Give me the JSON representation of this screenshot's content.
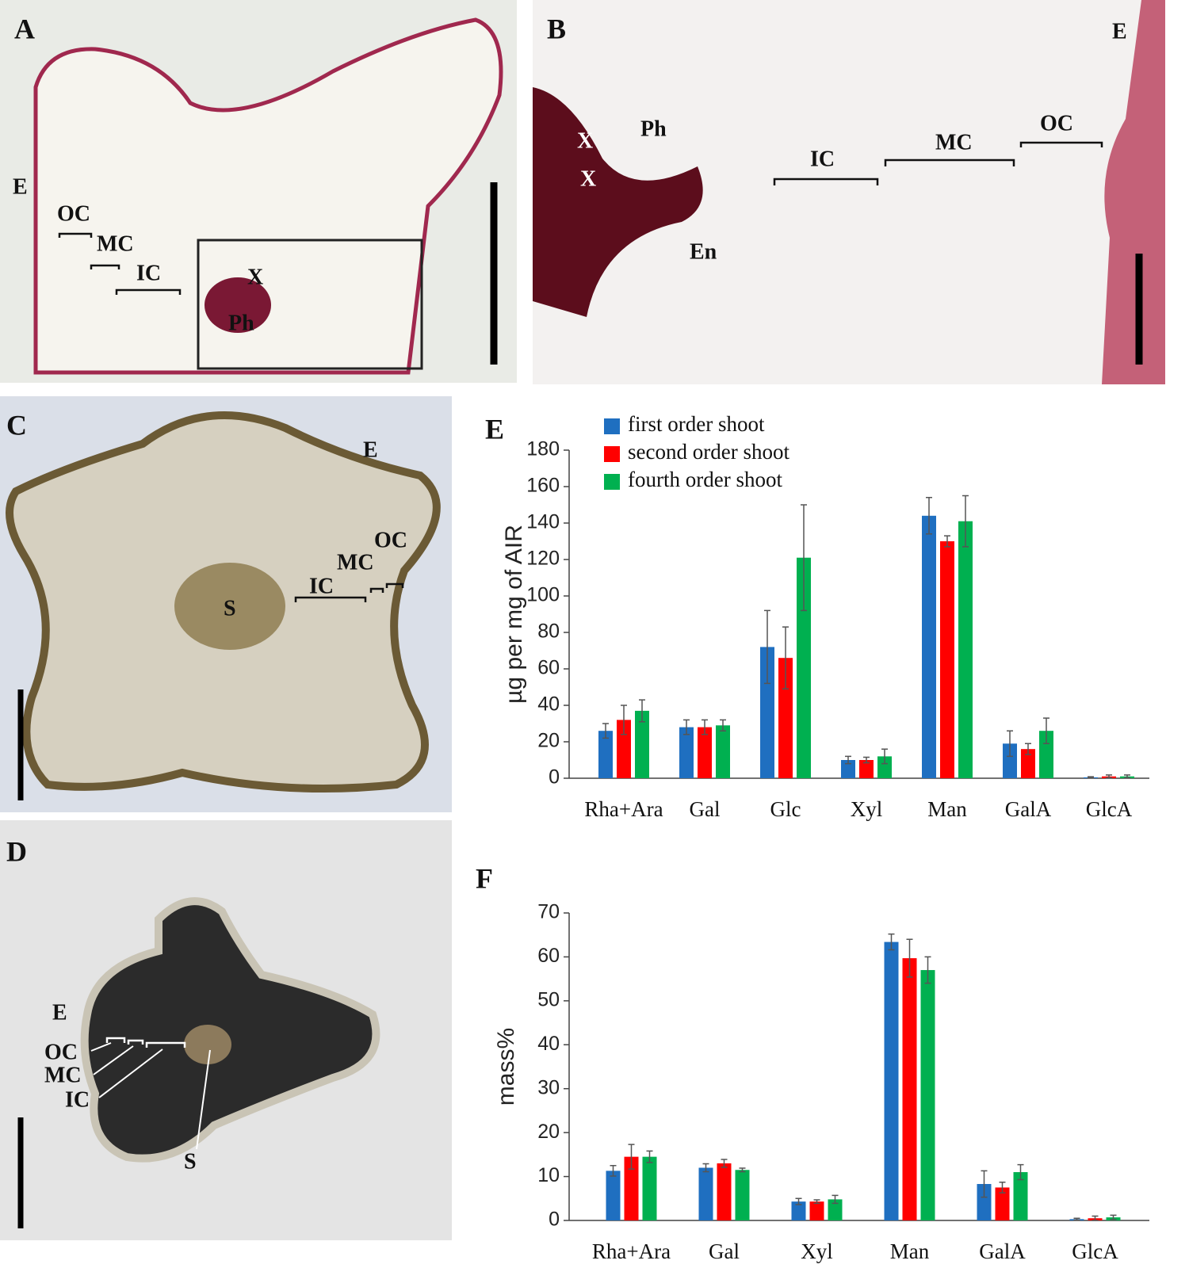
{
  "images": [
    {
      "letter": "A",
      "labels": [
        "E",
        "OC",
        "MC",
        "IC",
        "X",
        "Ph"
      ]
    },
    {
      "letter": "B",
      "labels": [
        "E",
        "Ph",
        "X",
        "X",
        "IC",
        "MC",
        "OC",
        "En"
      ]
    },
    {
      "letter": "C",
      "labels": [
        "E",
        "OC",
        "MC",
        "IC",
        "S"
      ]
    },
    {
      "letter": "D",
      "labels": [
        "E",
        "OC",
        "MC",
        "IC",
        "S"
      ]
    }
  ],
  "chart_data": [
    {
      "type": "bar",
      "panel": "E",
      "ylabel": "µg per mg of AIR",
      "categories": [
        "Rha+Ara",
        "Gal",
        "Glc",
        "Xyl",
        "Man",
        "GalA",
        "GlcA"
      ],
      "series": [
        {
          "name": "first order shoot",
          "color": "#1f6fc0",
          "values": [
            26,
            28,
            72,
            10,
            144,
            19,
            0.5
          ],
          "errors": [
            4,
            4,
            20,
            2,
            10,
            7,
            0.3
          ]
        },
        {
          "name": "second order shoot",
          "color": "#ff0000",
          "values": [
            32,
            28,
            66,
            10,
            130,
            16,
            1
          ],
          "errors": [
            8,
            4,
            17,
            1.5,
            3,
            3,
            0.8
          ]
        },
        {
          "name": "fourth order shoot",
          "color": "#00b050",
          "values": [
            37,
            29,
            121,
            12,
            141,
            26,
            1
          ],
          "errors": [
            6,
            3,
            29,
            4,
            14,
            7,
            0.8
          ]
        }
      ],
      "ylim": [
        0,
        180
      ],
      "yticks": [
        0,
        20,
        40,
        60,
        80,
        100,
        120,
        140,
        160,
        180
      ],
      "legend": "top-left"
    },
    {
      "type": "bar",
      "panel": "F",
      "ylabel": "mass%",
      "categories": [
        "Rha+Ara",
        "Gal",
        "Xyl",
        "Man",
        "GalA",
        "GlcA"
      ],
      "series": [
        {
          "color": "#1f6fc0",
          "values": [
            11.3,
            12,
            4.3,
            63.4,
            8.3,
            0.3
          ],
          "errors": [
            1.2,
            0.9,
            0.7,
            1.8,
            3,
            0.2
          ]
        },
        {
          "color": "#ff0000",
          "values": [
            14.5,
            13,
            4.3,
            59.7,
            7.5,
            0.5
          ],
          "errors": [
            2.8,
            0.9,
            0.4,
            4.3,
            1.2,
            0.5
          ]
        },
        {
          "color": "#00b050",
          "values": [
            14.5,
            11.5,
            4.8,
            57,
            11,
            0.7
          ],
          "errors": [
            1.3,
            0.4,
            0.9,
            3,
            1.7,
            0.5
          ]
        }
      ],
      "ylim": [
        0,
        70
      ],
      "yticks": [
        0,
        10,
        20,
        30,
        40,
        50,
        60,
        70
      ]
    }
  ]
}
